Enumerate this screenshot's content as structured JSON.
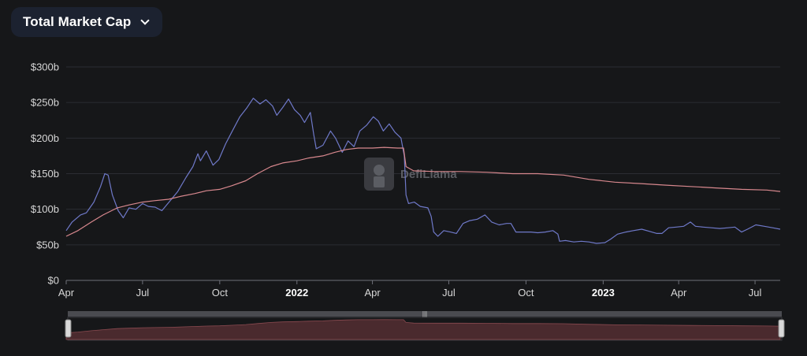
{
  "header": {
    "selector_label": "Total Market Cap"
  },
  "watermark": "DefiLlama",
  "colors": {
    "background": "#161719",
    "grid": "#2b2d33",
    "series_blue": "#6f79c9",
    "series_red": "#d8888e",
    "brush_fill": "#4a2a2e"
  },
  "chart_data": {
    "type": "line",
    "title": "Total Market Cap",
    "xlabel": "",
    "ylabel": "",
    "ylim": [
      0,
      300
    ],
    "y_ticks": [
      {
        "value": 0,
        "label": "$0"
      },
      {
        "value": 50,
        "label": "$50b"
      },
      {
        "value": 100,
        "label": "$100b"
      },
      {
        "value": 150,
        "label": "$150b"
      },
      {
        "value": 200,
        "label": "$200b"
      },
      {
        "value": 250,
        "label": "$250b"
      },
      {
        "value": 300,
        "label": "$300b"
      }
    ],
    "xlim": [
      "2021-04-01",
      "2023-07-31"
    ],
    "x_ticks": [
      {
        "date": "2021-04-01",
        "label": "Apr",
        "year": false
      },
      {
        "date": "2021-07-01",
        "label": "Jul",
        "year": false
      },
      {
        "date": "2021-10-01",
        "label": "Oct",
        "year": false
      },
      {
        "date": "2022-01-01",
        "label": "2022",
        "year": true
      },
      {
        "date": "2022-04-01",
        "label": "Apr",
        "year": false
      },
      {
        "date": "2022-07-01",
        "label": "Jul",
        "year": false
      },
      {
        "date": "2022-10-01",
        "label": "Oct",
        "year": false
      },
      {
        "date": "2023-01-01",
        "label": "2023",
        "year": true
      },
      {
        "date": "2023-04-01",
        "label": "Apr",
        "year": false
      },
      {
        "date": "2023-07-01",
        "label": "Jul",
        "year": false
      }
    ],
    "grid": true,
    "series": [
      {
        "color": "#6f79c9",
        "points": [
          [
            "2021-04-01",
            70
          ],
          [
            "2021-04-08",
            82
          ],
          [
            "2021-04-18",
            92
          ],
          [
            "2021-04-25",
            95
          ],
          [
            "2021-05-04",
            110
          ],
          [
            "2021-05-12",
            132
          ],
          [
            "2021-05-17",
            150
          ],
          [
            "2021-05-21",
            148
          ],
          [
            "2021-05-26",
            120
          ],
          [
            "2021-06-02",
            98
          ],
          [
            "2021-06-08",
            88
          ],
          [
            "2021-06-15",
            102
          ],
          [
            "2021-06-23",
            100
          ],
          [
            "2021-07-01",
            108
          ],
          [
            "2021-07-08",
            104
          ],
          [
            "2021-07-16",
            103
          ],
          [
            "2021-07-24",
            98
          ],
          [
            "2021-08-03",
            112
          ],
          [
            "2021-08-12",
            125
          ],
          [
            "2021-08-22",
            145
          ],
          [
            "2021-08-30",
            160
          ],
          [
            "2021-09-05",
            178
          ],
          [
            "2021-09-08",
            168
          ],
          [
            "2021-09-15",
            182
          ],
          [
            "2021-09-23",
            162
          ],
          [
            "2021-09-30",
            170
          ],
          [
            "2021-10-08",
            192
          ],
          [
            "2021-10-16",
            210
          ],
          [
            "2021-10-25",
            230
          ],
          [
            "2021-11-02",
            242
          ],
          [
            "2021-11-10",
            256
          ],
          [
            "2021-11-18",
            248
          ],
          [
            "2021-11-25",
            254
          ],
          [
            "2021-12-03",
            245
          ],
          [
            "2021-12-08",
            232
          ],
          [
            "2021-12-15",
            243
          ],
          [
            "2021-12-22",
            255
          ],
          [
            "2021-12-29",
            240
          ],
          [
            "2022-01-05",
            232
          ],
          [
            "2022-01-10",
            222
          ],
          [
            "2022-01-17",
            236
          ],
          [
            "2022-01-21",
            205
          ],
          [
            "2022-01-24",
            185
          ],
          [
            "2022-02-01",
            190
          ],
          [
            "2022-02-10",
            210
          ],
          [
            "2022-02-16",
            200
          ],
          [
            "2022-02-24",
            180
          ],
          [
            "2022-03-03",
            196
          ],
          [
            "2022-03-10",
            188
          ],
          [
            "2022-03-17",
            210
          ],
          [
            "2022-03-25",
            218
          ],
          [
            "2022-04-02",
            230
          ],
          [
            "2022-04-08",
            224
          ],
          [
            "2022-04-14",
            210
          ],
          [
            "2022-04-21",
            220
          ],
          [
            "2022-04-28",
            208
          ],
          [
            "2022-05-05",
            200
          ],
          [
            "2022-05-09",
            175
          ],
          [
            "2022-05-11",
            120
          ],
          [
            "2022-05-14",
            108
          ],
          [
            "2022-05-21",
            110
          ],
          [
            "2022-05-28",
            104
          ],
          [
            "2022-06-06",
            102
          ],
          [
            "2022-06-10",
            90
          ],
          [
            "2022-06-13",
            68
          ],
          [
            "2022-06-18",
            62
          ],
          [
            "2022-06-25",
            70
          ],
          [
            "2022-07-03",
            68
          ],
          [
            "2022-07-10",
            66
          ],
          [
            "2022-07-18",
            80
          ],
          [
            "2022-07-26",
            84
          ],
          [
            "2022-08-04",
            86
          ],
          [
            "2022-08-13",
            92
          ],
          [
            "2022-08-21",
            82
          ],
          [
            "2022-08-30",
            78
          ],
          [
            "2022-09-08",
            80
          ],
          [
            "2022-09-13",
            80
          ],
          [
            "2022-09-19",
            68
          ],
          [
            "2022-09-28",
            68
          ],
          [
            "2022-10-07",
            68
          ],
          [
            "2022-10-15",
            67
          ],
          [
            "2022-10-24",
            68
          ],
          [
            "2022-11-02",
            70
          ],
          [
            "2022-11-08",
            65
          ],
          [
            "2022-11-10",
            55
          ],
          [
            "2022-11-17",
            56
          ],
          [
            "2022-11-27",
            54
          ],
          [
            "2022-12-06",
            55
          ],
          [
            "2022-12-15",
            54
          ],
          [
            "2022-12-24",
            52
          ],
          [
            "2023-01-03",
            53
          ],
          [
            "2023-01-10",
            58
          ],
          [
            "2023-01-18",
            65
          ],
          [
            "2023-01-28",
            68
          ],
          [
            "2023-02-06",
            70
          ],
          [
            "2023-02-16",
            72
          ],
          [
            "2023-02-25",
            69
          ],
          [
            "2023-03-06",
            66
          ],
          [
            "2023-03-12",
            66
          ],
          [
            "2023-03-20",
            74
          ],
          [
            "2023-03-29",
            75
          ],
          [
            "2023-04-07",
            76
          ],
          [
            "2023-04-15",
            82
          ],
          [
            "2023-04-21",
            76
          ],
          [
            "2023-04-30",
            75
          ],
          [
            "2023-05-10",
            74
          ],
          [
            "2023-05-20",
            73
          ],
          [
            "2023-05-30",
            74
          ],
          [
            "2023-06-07",
            75
          ],
          [
            "2023-06-15",
            68
          ],
          [
            "2023-06-22",
            72
          ],
          [
            "2023-07-02",
            78
          ],
          [
            "2023-07-12",
            76
          ],
          [
            "2023-07-22",
            74
          ],
          [
            "2023-07-31",
            72
          ]
        ]
      },
      {
        "color": "#d8888e",
        "points": [
          [
            "2021-04-01",
            62
          ],
          [
            "2021-04-15",
            70
          ],
          [
            "2021-05-01",
            82
          ],
          [
            "2021-05-15",
            92
          ],
          [
            "2021-06-01",
            102
          ],
          [
            "2021-06-15",
            106
          ],
          [
            "2021-07-01",
            110
          ],
          [
            "2021-07-15",
            112
          ],
          [
            "2021-08-01",
            114
          ],
          [
            "2021-08-15",
            118
          ],
          [
            "2021-09-01",
            122
          ],
          [
            "2021-09-15",
            126
          ],
          [
            "2021-10-01",
            128
          ],
          [
            "2021-10-15",
            133
          ],
          [
            "2021-11-01",
            140
          ],
          [
            "2021-11-15",
            150
          ],
          [
            "2021-12-01",
            160
          ],
          [
            "2021-12-15",
            165
          ],
          [
            "2022-01-01",
            168
          ],
          [
            "2022-01-15",
            172
          ],
          [
            "2022-02-01",
            175
          ],
          [
            "2022-02-15",
            180
          ],
          [
            "2022-03-01",
            184
          ],
          [
            "2022-03-15",
            186
          ],
          [
            "2022-04-01",
            186
          ],
          [
            "2022-04-15",
            187
          ],
          [
            "2022-05-01",
            186
          ],
          [
            "2022-05-08",
            186
          ],
          [
            "2022-05-11",
            160
          ],
          [
            "2022-05-20",
            154
          ],
          [
            "2022-06-15",
            153
          ],
          [
            "2022-07-15",
            153
          ],
          [
            "2022-08-15",
            152
          ],
          [
            "2022-09-15",
            150
          ],
          [
            "2022-10-15",
            150
          ],
          [
            "2022-11-15",
            148
          ],
          [
            "2022-12-15",
            142
          ],
          [
            "2023-01-15",
            138
          ],
          [
            "2023-02-15",
            136
          ],
          [
            "2023-03-15",
            134
          ],
          [
            "2023-04-15",
            132
          ],
          [
            "2023-05-15",
            130
          ],
          [
            "2023-06-15",
            128
          ],
          [
            "2023-07-15",
            127
          ],
          [
            "2023-07-31",
            125
          ]
        ]
      }
    ]
  }
}
